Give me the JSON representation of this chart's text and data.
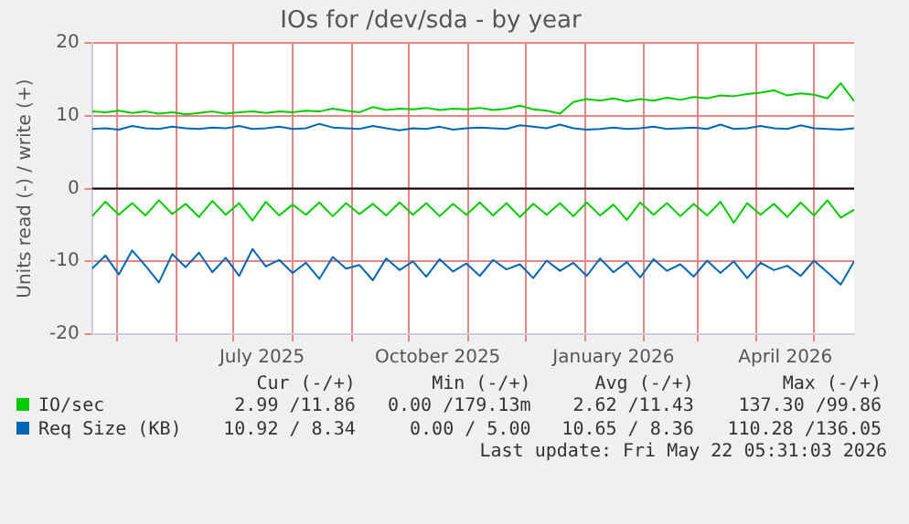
{
  "chart_data": {
    "type": "line",
    "title": "IOs for /dev/sda - by year",
    "ylabel": "Units read (-) / write (+)",
    "x": [
      "2025-04-18",
      "2025-04-25",
      "2025-05-02",
      "2025-05-09",
      "2025-05-16",
      "2025-05-23",
      "2025-05-30",
      "2025-06-06",
      "2025-06-13",
      "2025-06-20",
      "2025-06-27",
      "2025-07-04",
      "2025-07-11",
      "2025-07-18",
      "2025-07-25",
      "2025-08-01",
      "2025-08-08",
      "2025-08-15",
      "2025-08-22",
      "2025-08-29",
      "2025-09-05",
      "2025-09-12",
      "2025-09-19",
      "2025-09-26",
      "2025-10-03",
      "2025-10-10",
      "2025-10-17",
      "2025-10-24",
      "2025-10-31",
      "2025-11-07",
      "2025-11-14",
      "2025-11-21",
      "2025-11-28",
      "2025-12-05",
      "2025-12-12",
      "2025-12-19",
      "2025-12-26",
      "2026-01-02",
      "2026-01-09",
      "2026-01-16",
      "2026-01-23",
      "2026-01-30",
      "2026-02-06",
      "2026-02-13",
      "2026-02-20",
      "2026-02-27",
      "2026-03-06",
      "2026-03-13",
      "2026-03-20",
      "2026-03-27",
      "2026-04-03",
      "2026-04-10",
      "2026-04-17",
      "2026-04-24",
      "2026-05-01",
      "2026-05-08",
      "2026-05-15",
      "2026-05-22"
    ],
    "series": [
      {
        "name": "IO/sec",
        "color": "#00cc00",
        "values": [
          10.6,
          10.5,
          10.7,
          10.4,
          10.6,
          10.3,
          10.5,
          10.2,
          10.4,
          10.6,
          10.3,
          10.5,
          10.6,
          10.4,
          10.6,
          10.5,
          10.7,
          10.6,
          11.0,
          10.7,
          10.5,
          11.2,
          10.8,
          11.0,
          10.9,
          11.1,
          10.8,
          11.0,
          10.9,
          11.1,
          10.8,
          11.0,
          11.4,
          10.9,
          10.7,
          10.3,
          11.9,
          12.3,
          12.1,
          12.4,
          12.0,
          12.3,
          12.1,
          12.5,
          12.2,
          12.6,
          12.4,
          12.8,
          12.7,
          13.0,
          13.2,
          13.5,
          12.8,
          13.1,
          12.9,
          12.4,
          14.5,
          12.0
        ]
      },
      {
        "color": "#00cc00",
        "values": [
          -3.8,
          -1.8,
          -3.6,
          -2.0,
          -3.7,
          -1.6,
          -3.5,
          -2.1,
          -3.9,
          -1.7,
          -3.6,
          -2.0,
          -4.4,
          -1.8,
          -3.7,
          -2.2,
          -3.6,
          -1.9,
          -3.8,
          -2.0,
          -3.5,
          -2.1,
          -3.7,
          -1.9,
          -3.6,
          -2.0,
          -3.8,
          -2.1,
          -3.6,
          -1.9,
          -3.7,
          -2.0,
          -3.9,
          -2.1,
          -3.6,
          -2.0,
          -3.8,
          -1.9,
          -3.7,
          -2.2,
          -4.3,
          -1.9,
          -3.6,
          -2.0,
          -3.8,
          -2.1,
          -3.7,
          -1.8,
          -4.7,
          -2.0,
          -3.6,
          -2.1,
          -3.9,
          -1.9,
          -3.7,
          -1.6,
          -4.0,
          -2.9
        ]
      },
      {
        "name": "Req Size (KB)",
        "color": "#0066b3",
        "values": [
          8.2,
          8.3,
          8.1,
          8.6,
          8.3,
          8.2,
          8.5,
          8.3,
          8.2,
          8.4,
          8.3,
          8.6,
          8.2,
          8.3,
          8.5,
          8.2,
          8.3,
          8.9,
          8.4,
          8.3,
          8.2,
          8.6,
          8.3,
          8.0,
          8.3,
          8.2,
          8.5,
          8.1,
          8.3,
          8.4,
          8.3,
          8.2,
          8.7,
          8.5,
          8.3,
          8.8,
          8.3,
          8.1,
          8.2,
          8.4,
          8.2,
          8.3,
          8.5,
          8.2,
          8.3,
          8.4,
          8.2,
          8.8,
          8.2,
          8.3,
          8.6,
          8.3,
          8.2,
          8.7,
          8.3,
          8.2,
          8.1,
          8.3
        ]
      },
      {
        "color": "#0066b3",
        "values": [
          -11.0,
          -9.2,
          -11.8,
          -8.5,
          -10.6,
          -12.9,
          -9.0,
          -10.8,
          -8.8,
          -11.5,
          -9.5,
          -12.0,
          -8.3,
          -10.7,
          -9.8,
          -11.6,
          -10.2,
          -12.4,
          -9.4,
          -11.0,
          -10.5,
          -12.6,
          -9.6,
          -11.2,
          -10.0,
          -12.1,
          -9.7,
          -11.4,
          -10.3,
          -12.0,
          -9.8,
          -11.1,
          -10.4,
          -12.3,
          -9.9,
          -11.3,
          -10.2,
          -12.0,
          -9.6,
          -11.5,
          -10.1,
          -12.2,
          -9.7,
          -11.3,
          -10.4,
          -12.1,
          -9.9,
          -11.6,
          -10.0,
          -12.3,
          -10.2,
          -11.2,
          -10.6,
          -12.0,
          -9.9,
          -11.5,
          -13.2,
          -10.0
        ]
      }
    ],
    "xlim": [
      "2025-04-18",
      "2026-05-22"
    ],
    "xticks": [
      {
        "value": "2025-05-01",
        "label": null
      },
      {
        "value": "2025-06-01",
        "label": null
      },
      {
        "value": "2025-07-01",
        "label": null
      },
      {
        "value": "2025-07-16",
        "label": "July 2025"
      },
      {
        "value": "2025-08-01",
        "label": null
      },
      {
        "value": "2025-09-01",
        "label": null
      },
      {
        "value": "2025-10-01",
        "label": null
      },
      {
        "value": "2025-10-16",
        "label": "October 2025"
      },
      {
        "value": "2025-11-01",
        "label": null
      },
      {
        "value": "2025-12-01",
        "label": null
      },
      {
        "value": "2026-01-01",
        "label": null
      },
      {
        "value": "2026-01-16",
        "label": "January 2026"
      },
      {
        "value": "2026-02-01",
        "label": null
      },
      {
        "value": "2026-03-01",
        "label": null
      },
      {
        "value": "2026-04-01",
        "label": null
      },
      {
        "value": "2026-04-16",
        "label": "April 2026"
      },
      {
        "value": "2026-05-01",
        "label": null
      }
    ],
    "ylim": [
      -20,
      20
    ],
    "yticks": [
      -20,
      -10,
      0,
      10,
      20
    ],
    "grid": true,
    "legend": "bottom",
    "marker": "none",
    "line_style": "solid",
    "ref_lines": [
      {
        "axis": "y",
        "value": 0,
        "color": "#000000"
      }
    ],
    "annotations": [
      "Cur (-/+)",
      "Min (-/+)",
      "Avg (-/+)",
      "Max (-/+)",
      "2.99 /11.86",
      "0.00 /179.13m",
      "2.62 /11.43",
      "137.30 /99.86",
      "10.92 / 8.34",
      "0.00 / 5.00",
      "10.65 / 8.36",
      "110.28 /136.05",
      "Last update: Fri May 22 05:31:03 2026"
    ]
  }
}
